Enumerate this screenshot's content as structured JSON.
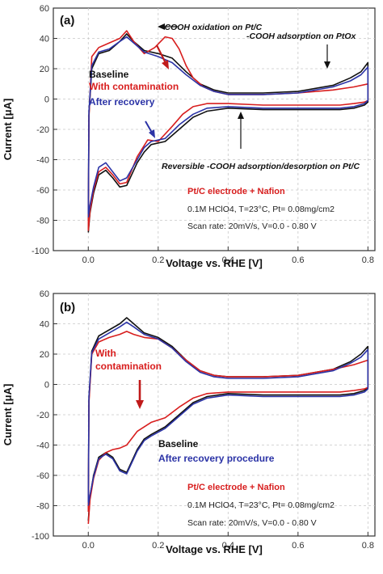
{
  "colors": {
    "black": "#111111",
    "red": "#d81e1e",
    "blue": "#2b33a6",
    "grid": "#c8c8c8",
    "arrow_red": "#c01a1a"
  },
  "chart_data": [
    {
      "type": "line",
      "panel_label": "(a)",
      "xlabel": "Voltage vs. RHE [V]",
      "ylabel": "Current [μA]",
      "xlim": [
        -0.1,
        0.82
      ],
      "ylim": [
        -100,
        60
      ],
      "xticks": [
        0.0,
        0.2,
        0.4,
        0.6,
        0.8
      ],
      "xtick_labels": [
        "0.0",
        "0.2",
        "0.4",
        "0.6",
        "0.8"
      ],
      "yticks": [
        60,
        40,
        20,
        0,
        -20,
        -40,
        -60,
        -80,
        -100
      ],
      "ytick_labels": [
        "60",
        "40",
        "20",
        "0",
        "-20",
        "-40",
        "-60",
        "-80",
        "-100"
      ],
      "grid": true,
      "legend_placement": "center-left",
      "series": [
        {
          "name": "Baseline",
          "color_key": "black",
          "x": [
            0.0,
            0.002,
            0.01,
            0.03,
            0.06,
            0.09,
            0.11,
            0.13,
            0.16,
            0.2,
            0.24,
            0.28,
            0.32,
            0.36,
            0.4,
            0.5,
            0.6,
            0.7,
            0.75,
            0.78,
            0.8,
            0.8,
            0.79,
            0.76,
            0.72,
            0.66,
            0.6,
            0.5,
            0.4,
            0.34,
            0.3,
            0.26,
            0.22,
            0.18,
            0.16,
            0.14,
            0.11,
            0.09,
            0.07,
            0.05,
            0.03,
            0.015,
            0.005,
            0.0
          ],
          "y": [
            -80,
            -10,
            20,
            30,
            32,
            38,
            43,
            38,
            32,
            30,
            27,
            18,
            10,
            6,
            4,
            4,
            5,
            9,
            14,
            18,
            24,
            -2,
            -4,
            -6,
            -7,
            -7,
            -7,
            -7,
            -6,
            -8,
            -12,
            -20,
            -28,
            -30,
            -35,
            -42,
            -57,
            -58,
            -52,
            -47,
            -50,
            -62,
            -75,
            -88
          ]
        },
        {
          "name": "With contamination",
          "color_key": "red",
          "x": [
            0.0,
            0.002,
            0.01,
            0.03,
            0.06,
            0.09,
            0.11,
            0.13,
            0.16,
            0.19,
            0.22,
            0.24,
            0.26,
            0.28,
            0.3,
            0.33,
            0.36,
            0.4,
            0.5,
            0.6,
            0.7,
            0.76,
            0.8,
            0.8,
            0.79,
            0.76,
            0.72,
            0.66,
            0.6,
            0.5,
            0.4,
            0.34,
            0.3,
            0.27,
            0.24,
            0.2,
            0.17,
            0.14,
            0.11,
            0.09,
            0.07,
            0.05,
            0.03,
            0.015,
            0.005,
            0.0
          ],
          "y": [
            -86,
            -12,
            28,
            34,
            37,
            40,
            45,
            38,
            30,
            34,
            41,
            40,
            33,
            22,
            14,
            8,
            5,
            3,
            3,
            4,
            6,
            8,
            10,
            -1,
            -2,
            -3,
            -4,
            -4,
            -4,
            -4,
            -3,
            -3,
            -5,
            -10,
            -18,
            -28,
            -27,
            -38,
            -55,
            -56,
            -50,
            -45,
            -48,
            -60,
            -74,
            -87
          ]
        },
        {
          "name": "After recovery",
          "color_key": "blue",
          "x": [
            0.0,
            0.002,
            0.01,
            0.03,
            0.06,
            0.09,
            0.11,
            0.13,
            0.16,
            0.2,
            0.24,
            0.28,
            0.32,
            0.36,
            0.4,
            0.5,
            0.6,
            0.7,
            0.75,
            0.78,
            0.8,
            0.8,
            0.79,
            0.76,
            0.72,
            0.66,
            0.6,
            0.5,
            0.4,
            0.34,
            0.3,
            0.26,
            0.22,
            0.18,
            0.16,
            0.14,
            0.11,
            0.09,
            0.07,
            0.05,
            0.03,
            0.015,
            0.005,
            0.0
          ],
          "y": [
            -76,
            -8,
            22,
            31,
            33,
            38,
            41,
            37,
            31,
            28,
            24,
            16,
            9,
            5,
            3,
            3,
            4,
            8,
            12,
            16,
            21,
            -1,
            -3,
            -5,
            -6,
            -6,
            -6,
            -6,
            -5,
            -6,
            -10,
            -17,
            -26,
            -28,
            -32,
            -40,
            -52,
            -54,
            -48,
            -42,
            -45,
            -58,
            -70,
            -78
          ]
        }
      ],
      "annotations": [
        {
          "text": "-COOH oxidation on Pt/C",
          "x": 0.255,
          "y": 50
        },
        {
          "text": "-COOH adsorption on PtOx",
          "x": 0.475,
          "y": 40
        },
        {
          "text": "Reversible -COOH adsorption/desorption on Pt/C",
          "x": 0.245,
          "y": -47
        }
      ],
      "conditions": [
        "Pt/C electrode + Nafion",
        "0.1M HClO4, T=23°C, Pt= 0.08mg/cm2",
        "Scan rate: 20mV/s, V=0.0 - 0.80 V"
      ]
    },
    {
      "type": "line",
      "panel_label": "(b)",
      "xlabel": "Voltage vs. RHE [V]",
      "ylabel": "Current [μA]",
      "xlim": [
        -0.1,
        0.82
      ],
      "ylim": [
        -100,
        60
      ],
      "xticks": [
        0.0,
        0.2,
        0.4,
        0.6,
        0.8
      ],
      "xtick_labels": [
        "0.0",
        "0.2",
        "0.4",
        "0.6",
        "0.8"
      ],
      "yticks": [
        60,
        40,
        20,
        0,
        -20,
        -40,
        -60,
        -80,
        -100
      ],
      "ytick_labels": [
        "60",
        "40",
        "20",
        "0",
        "-20",
        "-40",
        "-60",
        "-80",
        "-100"
      ],
      "grid": true,
      "legend_placement": "center",
      "series": [
        {
          "name": "Baseline",
          "color_key": "black",
          "x": [
            0.0,
            0.002,
            0.01,
            0.03,
            0.06,
            0.09,
            0.11,
            0.13,
            0.16,
            0.2,
            0.24,
            0.28,
            0.32,
            0.36,
            0.4,
            0.5,
            0.6,
            0.7,
            0.75,
            0.78,
            0.8,
            0.8,
            0.79,
            0.76,
            0.72,
            0.66,
            0.6,
            0.5,
            0.4,
            0.34,
            0.3,
            0.26,
            0.22,
            0.18,
            0.16,
            0.14,
            0.11,
            0.09,
            0.07,
            0.05,
            0.03,
            0.015,
            0.005,
            0.0
          ],
          "y": [
            -82,
            -10,
            22,
            32,
            36,
            40,
            44,
            40,
            34,
            31,
            25,
            16,
            9,
            6,
            5,
            5,
            6,
            10,
            15,
            20,
            25,
            -2,
            -4,
            -6,
            -7,
            -7,
            -7,
            -7,
            -6,
            -8,
            -12,
            -20,
            -28,
            -33,
            -36,
            -43,
            -58,
            -56,
            -48,
            -45,
            -48,
            -60,
            -74,
            -90
          ]
        },
        {
          "name": "With contamination",
          "color_key": "red",
          "x": [
            0.0,
            0.002,
            0.01,
            0.03,
            0.06,
            0.09,
            0.11,
            0.13,
            0.16,
            0.2,
            0.24,
            0.28,
            0.32,
            0.36,
            0.4,
            0.5,
            0.6,
            0.7,
            0.76,
            0.8,
            0.8,
            0.79,
            0.76,
            0.72,
            0.66,
            0.6,
            0.5,
            0.4,
            0.34,
            0.3,
            0.26,
            0.22,
            0.18,
            0.14,
            0.11,
            0.09,
            0.07,
            0.05,
            0.03,
            0.015,
            0.005,
            0.0
          ],
          "y": [
            -84,
            -12,
            20,
            28,
            31,
            33,
            35,
            33,
            31,
            30,
            24,
            16,
            9,
            6,
            5,
            5,
            6,
            10,
            13,
            16,
            -2,
            -3,
            -4,
            -5,
            -5,
            -5,
            -5,
            -5,
            -6,
            -9,
            -15,
            -22,
            -25,
            -31,
            -40,
            -42,
            -43,
            -45,
            -50,
            -62,
            -76,
            -92
          ]
        },
        {
          "name": "After recovery procedure",
          "color_key": "blue",
          "x": [
            0.0,
            0.002,
            0.01,
            0.03,
            0.06,
            0.09,
            0.11,
            0.13,
            0.16,
            0.2,
            0.24,
            0.28,
            0.32,
            0.36,
            0.4,
            0.5,
            0.6,
            0.7,
            0.75,
            0.78,
            0.8,
            0.8,
            0.79,
            0.76,
            0.72,
            0.66,
            0.6,
            0.5,
            0.4,
            0.34,
            0.3,
            0.26,
            0.22,
            0.18,
            0.16,
            0.14,
            0.11,
            0.09,
            0.07,
            0.05,
            0.03,
            0.015,
            0.005,
            0.0
          ],
          "y": [
            -78,
            -8,
            21,
            30,
            34,
            38,
            41,
            38,
            33,
            30,
            24,
            15,
            8,
            5,
            4,
            4,
            5,
            9,
            14,
            18,
            23,
            -3,
            -5,
            -7,
            -8,
            -8,
            -8,
            -8,
            -7,
            -9,
            -13,
            -21,
            -29,
            -34,
            -37,
            -44,
            -59,
            -57,
            -49,
            -46,
            -49,
            -61,
            -73,
            -80
          ]
        }
      ],
      "annotations": [],
      "conditions": [
        "Pt/C electrode + Nafion",
        "0.1M HClO4, T=23°C, Pt= 0.08mg/cm2",
        "Scan rate: 20mV/s, V=0.0 - 0.80 V"
      ]
    }
  ]
}
